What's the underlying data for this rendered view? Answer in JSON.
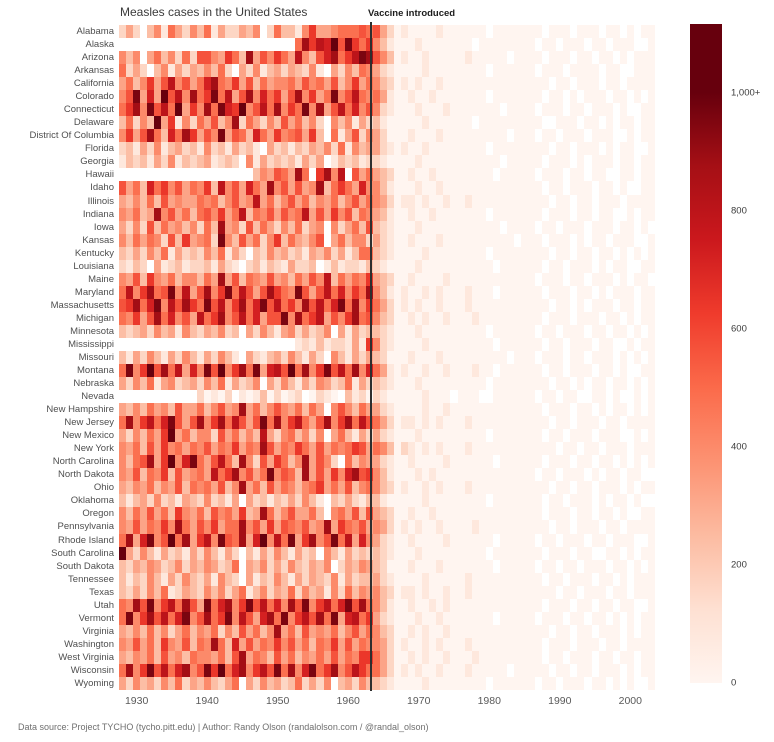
{
  "title": "Measles cases in the United States",
  "footer": "Data source: Project TYCHO (tycho.pitt.edu) | Author: Randy Olson (randalolson.com / @randal_olson)",
  "chart_data": {
    "type": "heatmap",
    "title": "Measles cases in the United States",
    "x": {
      "start": 1928,
      "end": 2003,
      "ticks": [
        1930,
        1940,
        1950,
        1960,
        1970,
        1980,
        1990,
        2000
      ]
    },
    "vaccine": {
      "label": "Vaccine introduced",
      "year": 1963
    },
    "colorbar": {
      "domain_max": 1000,
      "ticks": [
        {
          "label": "1,000+",
          "value": 1000
        },
        {
          "label": "800",
          "value": 800
        },
        {
          "label": "600",
          "value": 600
        },
        {
          "label": "400",
          "value": 400
        },
        {
          "label": "200",
          "value": 200
        },
        {
          "label": "0",
          "value": 0
        }
      ],
      "scale_anchors": [
        "#fff5f0",
        "#fee0d2",
        "#fcbba1",
        "#fc9272",
        "#fb6a4a",
        "#ef3b2c",
        "#cb181d",
        "#a50f15",
        "#67000d"
      ]
    },
    "encoding": {
      "description": "Each row string holds one character per year 1928-2003. '.' = no data (white). Hex digit 0-9,A-F = estimated reported cases on the colorbar scale, value = digit x 80 (F saturates above 1,000+).",
      "missing_char": ".",
      "unit": 80,
      "missing_color": "#ffffff"
    },
    "series": [
      {
        "state": "Alabama",
        "segments": [
          "242.35164253",
          "61422435.263",
          "315844566676",
          "7420",
          "10000100",
          "0000.00000",
          "00.000.000.00.0.00"
        ]
      },
      {
        "state": "Alaska",
        "segments": [
          "............",
          "............",
          ".6B8A9D7C868",
          "5310",
          "00100000",
          "00.0000000",
          "0.00.000.00.000..0"
        ]
      },
      {
        "state": "Arizona",
        "segments": [
          "535.46352627",
          "754863B47586",
          "4A5379B68ACB",
          "7530",
          "10010000",
          "0100000.00",
          "00.000.00.00.0.000"
        ]
      },
      {
        "state": "Arkansas",
        "segments": [
          "6242.3514243",
          "5362.4251342",
          "43251.425365",
          "4210",
          "00010000",
          "0000.00000",
          "0.000.0000.00..000"
        ]
      },
      {
        "state": "California",
        "segments": [
          "4635847A5746",
          "9B6584736455",
          "647564735846",
          "5320",
          "10100100",
          "0000000000",
          "000.00.000.00.0000"
        ]
      },
      {
        "state": "Colorado",
        "segments": [
          "57C494D7A5B6",
          "8C6A47B59684",
          "7B5846C57A65",
          "6410",
          "01001000",
          "0000.00000",
          "00.00.0.000.00.0.0"
        ]
      },
      {
        "state": "Connecticut",
        "segments": [
          "68B5C7A6D485",
          "B6C98D57A6B5",
          "86C5B47A6957",
          "5210",
          "00100010",
          "000000.000",
          "0.000.00.000.0..00"
        ]
      },
      {
        "state": "Delaware",
        "segments": [
          "36253D481526",
          "4735B2642537",
          "46352.535142",
          "3100",
          "00010000",
          "00.0000000",
          "00..000.00.0.00.00"
        ]
      },
      {
        "state": "District Of Columbia",
        "segments": [
          "5847B6396B84",
          "75C476396485",
          "67483.614725",
          "4200",
          "01000100",
          "0000000.00",
          "0.00.000.000..0.00"
        ]
      },
      {
        "state": "Florida",
        "segments": [
          "231425134231",
          "52314231.423",
          "132435261534",
          "4210",
          "10010000",
          "0000.00000",
          "000.00.000.0.00..0"
        ]
      },
      {
        "state": "Georgia",
        "segments": [
          "132314251323",
          "41232.514232",
          "31424.132312",
          "2100",
          "00100000",
          "000000.000",
          "00.000.0.000.00.00"
        ]
      },
      {
        "state": "Hawaii",
        "segments": [
          "............",
          ".......35476",
          "4B6.8B5A.746",
          "4320",
          "01001000",
          "00000.0000",
          "0.000.00.00..00.00"
        ]
      },
      {
        "state": "Idaho",
        "segments": [
          "746396857465",
          "83A574964B57",
          "4745B3686495",
          "5310",
          "00100100",
          "0000000000",
          "00.00.000.00.0..00"
        ]
      },
      {
        "state": "Illinois",
        "segments": [
          "435363745446",
          "5635745A4635",
          "746354635746",
          "5420",
          "11010010",
          "0100000000",
          "000.00.00.000.0000"
        ]
      },
      {
        "state": "Indiana",
        "segments": [
          "54634B574636",
          "75846A365747",
          "56A474857365",
          "4310",
          "01001000",
          "0000.00000",
          "00.000.00.00..0.00"
        ]
      },
      {
        "state": "Iowa",
        "segments": [
          "425273645352",
          "63B452736425",
          "36245.524637",
          "3210",
          "00100000",
          "000000.000",
          "0.00.000.000.00.0."
        ]
      },
      {
        "state": "Kansas",
        "segments": [
          "536465273845",
          "62C537462583",
          "64357.463552",
          "4210",
          "01000100",
          "00000000.0",
          "00.000.0.00.000..0"
        ]
      },
      {
        "state": "Kentucky",
        "segments": [
          "324253614232",
          "536142.32534",
          "231435241366",
          "3210",
          "00010000",
          "0000.00000",
          "000.00.00.00.0.0.0"
        ]
      },
      {
        "state": "Louisiana",
        "segments": [
          "2132.4123122",
          "31421.231321",
          "4223.1312213",
          "2100",
          "00100000",
          "00000.0000",
          "00.00.000.0.00..00"
        ]
      },
      {
        "state": "Maine",
        "segments": [
          "547385463553",
          "64B473654745",
          "36475A364658",
          "4320",
          "01000010",
          "0000000000",
          "0.000.00.000.0.00."
        ]
      },
      {
        "state": "Maryland",
        "segments": [
          "6A58B67C5A47",
          "B58C6A747B86",
          "5C747A69586B",
          "5310",
          "10010100",
          "01000.0000",
          "00.000.00.0.000.00"
        ]
      },
      {
        "state": "Massachusetts",
        "segments": [
          "78B69C5A7B86",
          "C7A58B69C7A6",
          "85B7A69C6B58",
          "6420",
          "10100100",
          "0100000000",
          "000.00.0.000.00.00"
        ]
      },
      {
        "state": "Michigan",
        "segments": [
          "65847B69574A",
          "68B57A69477C",
          "5B68A4758B67",
          "5320",
          "01010010",
          "0010000000",
          "00.000.000.00.0.00"
        ]
      },
      {
        "state": "Minnesota",
        "segments": [
          "323425341532",
          "43523.425314",
          "524235.41423",
          "3210",
          "00100000",
          "0000.00000",
          "0.00.000.00.00.0.0"
        ]
      },
      {
        "state": "Mississippi",
        "segments": [
          "............",
          "............",
          ".12131221418",
          "5210",
          "00010000",
          "00000.0000",
          "00.00.000.00..0.00"
        ]
      },
      {
        "state": "Missouri",
        "segments": [
          "314253142531",
          "42531.421342",
          "53142.531424",
          "3200",
          "01000100",
          "0000000.00",
          "0.000.00.000.0.0.0"
        ]
      },
      {
        "state": "Montana",
        "segments": [
          "6C58D7B6A495",
          "C7D58B6C49A7",
          "D6B58C7A6B59",
          "6410",
          "10010010",
          "00100.0000",
          "00.00.000.00.0..00"
        ]
      },
      {
        "state": "Nebraska",
        "segments": [
          "425361452342",
          "53614235.425",
          "314254236142",
          "3210",
          "00100000",
          "0000.00000",
          "000.00.0.00.00.0.0"
        ]
      },
      {
        "state": "Nevada",
        "segments": [
          "...........2",
          "0102.1013020",
          "12.0210.3120",
          "2100",
          "0001000.",
          "000..00000",
          "0.00.00..00.0..0.0"
        ]
      },
      {
        "state": "New Hampshire",
        "segments": [
          "435364537446",
          "35745B463575",
          "46364.575364",
          "4210",
          "00010010",
          "0000000000",
          "00.000.00.0.00.0.0"
        ]
      },
      {
        "state": "New Jersey",
        "segments": [
          "6B58A69C747B",
          "58B6A747C6B5",
          "8A647B58B6A7",
          "6420",
          "11010100",
          "0100000000",
          "000.00.000.00.0000"
        ]
      },
      {
        "state": "New Mexico",
        "segments": [
          "4253648D4635",
          "52746353A425",
          "63525.463142",
          "4210",
          "00100000",
          "0000.00000",
          "00.00.000.000..0.0"
        ]
      },
      {
        "state": "New York",
        "segments": [
          "546374856465",
          "74658465B746",
          "586474656874",
          "6530",
          "21010100",
          "0100000000",
          "0000.00.00.000.000"
        ]
      },
      {
        "state": "North Carolina",
        "segments": [
          "5367B48D59C6",
          "47A63B527486",
          "35B4752.6354",
          "4210",
          "01000010",
          "00000.0000",
          "00.000.00.00.0.0.0"
        ]
      },
      {
        "state": "North Dakota",
        "segments": [
          "547365837456",
          "4A68B5746C57",
          "63B474859B78",
          "5310",
          "00101000",
          "0000000000",
          "0.00.000.0.00.00.."
        ]
      },
      {
        "state": "Ohio",
        "segments": [
          "435463547365",
          "64735B463746",
          "535684647356",
          "5320",
          "10010100",
          "0100000000",
          "000.00.00.000.0.00"
        ]
      },
      {
        "state": "Oklahoma",
        "segments": [
          "313425231432",
          "52314.423132",
          "42531.324213",
          "3100",
          "00010000",
          "0000.00000",
          "00.00.000.0.00.0.."
        ]
      },
      {
        "state": "Oregon",
        "segments": [
          "536474638546",
          "37564834B635",
          "74463.564737",
          "4320",
          "01001000",
          "0000000000",
          "00.000.00.00.0..00"
        ]
      },
      {
        "state": "Pennsylvania",
        "segments": [
          "54746585B647",
          "58466B574847",
          "65745B486574",
          "5420",
          "10100100",
          "0010000000",
          "000.00.000.00.0000"
        ]
      },
      {
        "state": "Rhode Island",
        "segments": [
          "6B49C57D6B48",
          "A5C76B49D5A6",
          "C48B57C6A495",
          "4210",
          "01000010",
          "00000.0000",
          "0.00.000.00.000..0"
        ]
      },
      {
        "state": "South Carolina",
        "segments": [
          "D42531423142",
          "53142.314253",
          "1423.5314232",
          "3210",
          "00100000",
          "0000.00000",
          "00.000.00..00.0.00"
        ]
      },
      {
        "state": "South Dakota",
        "segments": [
          "324354235243",
          "54236.435242",
          "532435.24354",
          "3200",
          "01000100",
          "00000.0000",
          "0.00.00.000.00.0.0"
        ]
      },
      {
        "state": "Tennessee",
        "segments": [
          "313253142532",
          "41532.413253",
          "142432514233",
          "4210",
          "00010000",
          "0100000000",
          "00.00.000.00.0.000"
        ]
      },
      {
        "state": "Texas",
        "segments": [
          "324253612432",
          "535246135243",
          "625341526354",
          "5320",
          "11010010",
          "0100000000",
          "0000.00.000.00.000"
        ]
      },
      {
        "state": "Utah",
        "segments": [
          "65B7C58A6B74",
          "C69B58C7A695",
          "B7C58A69C7B6",
          "5310",
          "01001010",
          "0000000000",
          "00.000.00.00.00..0"
        ]
      },
      {
        "state": "Vermont",
        "segments": [
          "6C58B7A69C57",
          "B68C5A749B6C",
          "58A7B6C49A68",
          "4210",
          "00100100",
          "00000.0000",
          "0.000.00.00.0.0.00"
        ]
      },
      {
        "state": "Virginia",
        "segments": [
          "435363524635",
          "4625374635B4",
          "637454635746",
          "5320",
          "01010010",
          "0000000000",
          "000.00.00.000.0.00"
        ]
      },
      {
        "state": "Washington",
        "segments": [
          "547463854736",
          "5B6394746585",
          "746365847465",
          "5420",
          "10010100",
          "0100000000",
          "00.000.000.00.0000"
        ]
      },
      {
        "state": "West Virginia",
        "segments": [
          "435463745365",
          "54637B465374",
          "635464746588",
          "6420",
          "01010010",
          "0010000000",
          "00.00.000.00.00.00"
        ]
      },
      {
        "state": "Wisconsin",
        "segments": [
          "6B58C7A69B57",
          "C8D69B58A7C6",
          "B59C68B57A86",
          "6420",
          "10100100",
          "0100000.00",
          "000.00.00.000.0.00"
        ]
      },
      {
        "state": "Wyoming",
        "segments": [
          "425342536243",
          "53246.425342",
          "362425.34253",
          "3210",
          "00010000",
          "0000.00000",
          "0.00.000.00.0.0..0"
        ]
      }
    ]
  }
}
